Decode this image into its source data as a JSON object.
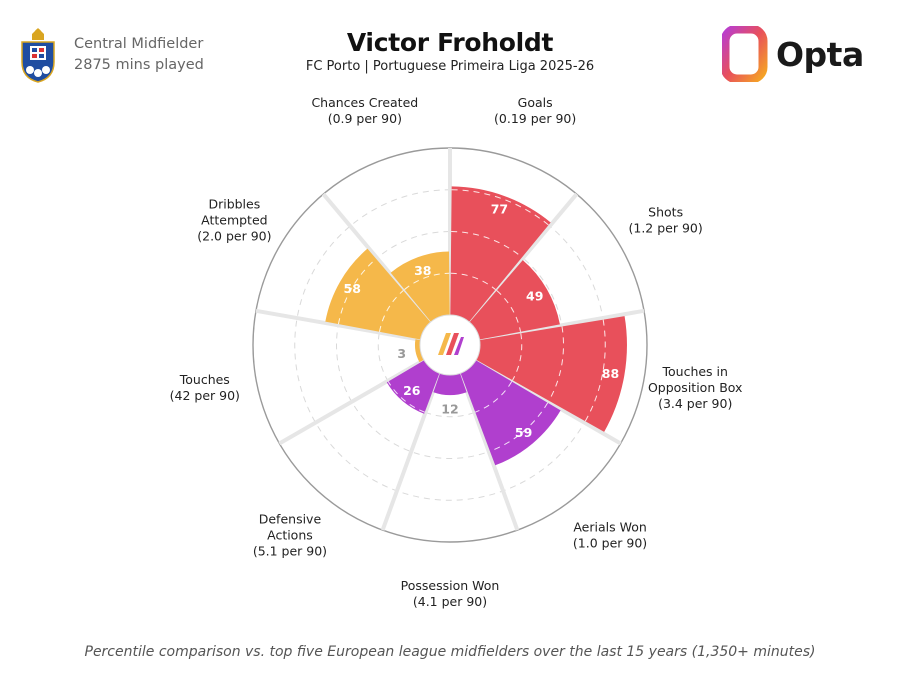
{
  "header": {
    "player_name": "Victor Froholdt",
    "subtitle": "FC Porto | Portuguese Primeira Liga 2025-26",
    "position": "Central Midfielder",
    "minutes": "2875 mins played",
    "brand": "Opta"
  },
  "footer": {
    "note": "Percentile comparison vs. top five European league midfielders over the last 15 years (1,350+ minutes)"
  },
  "colors": {
    "attack": "#e8505b",
    "possession": "#f5b84a",
    "defense": "#b03fce",
    "grid": "#d9d9d9",
    "background_wedge": "#ffffff"
  },
  "chart_data": {
    "type": "radar-bar",
    "scale": [
      0,
      100
    ],
    "categories": [
      {
        "label": [
          "Goals",
          "(0.19 per 90)"
        ],
        "value": 77,
        "group": "attack"
      },
      {
        "label": [
          "Shots",
          "(1.2 per 90)"
        ],
        "value": 49,
        "group": "attack"
      },
      {
        "label": [
          "Touches in",
          "Opposition Box",
          "(3.4 per 90)"
        ],
        "value": 88,
        "group": "attack"
      },
      {
        "label": [
          "Aerials Won",
          "(1.0 per 90)"
        ],
        "value": 59,
        "group": "defense"
      },
      {
        "label": [
          "Possession Won",
          "(4.1 per 90)"
        ],
        "value": 12,
        "group": "defense"
      },
      {
        "label": [
          "Defensive",
          "Actions",
          "(5.1 per 90)"
        ],
        "value": 26,
        "group": "defense"
      },
      {
        "label": [
          "Touches",
          "(42 per 90)"
        ],
        "value": 3,
        "group": "possession"
      },
      {
        "label": [
          "Dribbles",
          "Attempted",
          "(2.0 per 90)"
        ],
        "value": 58,
        "group": "possession"
      },
      {
        "label": [
          "Chances Created",
          "(0.9 per 90)"
        ],
        "value": 38,
        "group": "possession"
      }
    ]
  }
}
